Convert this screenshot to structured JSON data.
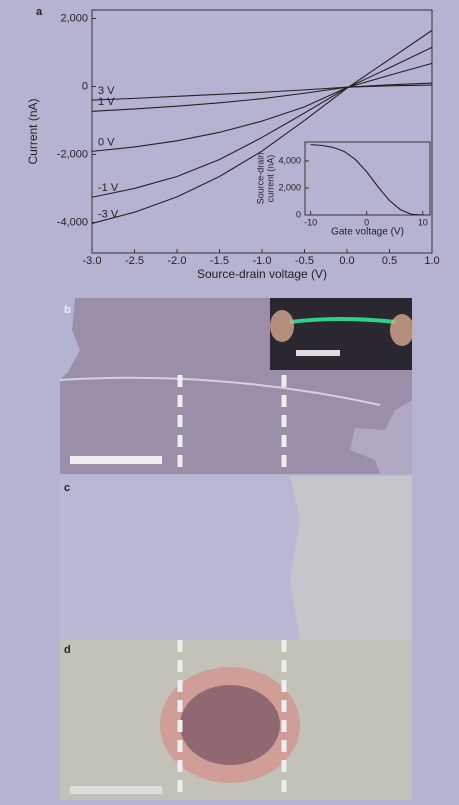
{
  "panel_labels": [
    "a",
    "b",
    "c",
    "d"
  ],
  "chart_data": [
    {
      "type": "line",
      "xlabel": "Source-drain voltage (V)",
      "ylabel": "Current (nA)",
      "x": [
        -3,
        -2.5,
        -2,
        -1.5,
        -1,
        -0.5,
        0,
        0.5,
        1
      ],
      "xlim": [
        -3,
        1
      ],
      "xticks": [
        {
          "value": -3,
          "label": "-3.0"
        },
        {
          "value": -2.5,
          "label": "-2.5"
        },
        {
          "value": -2,
          "label": "-2.0"
        },
        {
          "value": -1.5,
          "label": "-1.5"
        },
        {
          "value": -1,
          "label": "-1.0"
        },
        {
          "value": -0.5,
          "label": "-0.5"
        },
        {
          "value": 0,
          "label": "0.0"
        },
        {
          "value": 0.5,
          "label": "0.5"
        },
        {
          "value": 1,
          "label": "1.0"
        }
      ],
      "ylim": [
        -4900,
        2250
      ],
      "yticks": [
        {
          "value": 2000,
          "label": "2,000"
        },
        0,
        {
          "value": -2000,
          "label": "-2,000"
        },
        {
          "value": -4000,
          "label": "-4,000"
        }
      ],
      "series": [
        {
          "name": "3 V",
          "color": "#222222",
          "values": [
            -400,
            -350,
            -290,
            -230,
            -170,
            -100,
            -20,
            20,
            40
          ]
        },
        {
          "name": "1 V",
          "color": "#222222",
          "values": [
            -730,
            -660,
            -580,
            -480,
            -360,
            -200,
            -20,
            50,
            100
          ]
        },
        {
          "name": "0 V",
          "color": "#222222",
          "values": [
            -1910,
            -1780,
            -1600,
            -1350,
            -1020,
            -600,
            -30,
            330,
            680
          ]
        },
        {
          "name": "-1 V",
          "color": "#222222",
          "values": [
            -3260,
            -3000,
            -2650,
            -2150,
            -1500,
            -780,
            -40,
            550,
            1150
          ]
        },
        {
          "name": "-3 V",
          "color": "#222222",
          "values": [
            -4030,
            -3700,
            -3250,
            -2650,
            -1900,
            -1000,
            -50,
            800,
            1650
          ]
        }
      ]
    },
    {
      "type": "line",
      "xlabel": "Gate voltage (V)",
      "ylabel": [
        "Source-drain",
        "current (nA)"
      ],
      "x": [
        -10,
        -8,
        -6,
        -4,
        -2,
        0,
        2,
        4,
        6,
        8,
        10
      ],
      "xlim": [
        -11,
        11.3
      ],
      "xticks": [
        -10,
        0,
        10
      ],
      "ylim": [
        0,
        5400
      ],
      "yticks": [
        0,
        {
          "value": 2000,
          "label": "2,000"
        },
        {
          "value": 4000,
          "label": "4,000"
        }
      ],
      "series": [
        {
          "color": "#222222",
          "values": [
            5200,
            5150,
            5000,
            4700,
            4100,
            3200,
            2100,
            1100,
            400,
            50,
            0
          ]
        }
      ]
    }
  ]
}
